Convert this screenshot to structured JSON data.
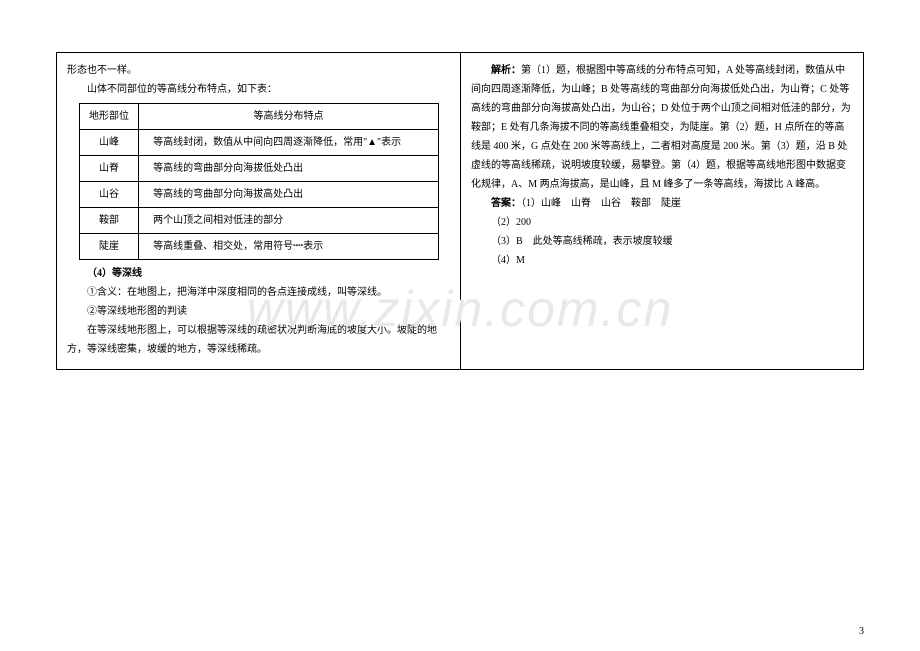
{
  "left": {
    "p1": "形态也不一样。",
    "p2": "山体不同部位的等高线分布特点，如下表：",
    "table": {
      "head": [
        "地形部位",
        "等高线分布特点"
      ],
      "rows": [
        [
          "山峰",
          "等高线封闭，数值从中间向四周逐渐降低，常用\"▲\"表示"
        ],
        [
          "山脊",
          "等高线的弯曲部分向海拔低处凸出"
        ],
        [
          "山谷",
          "等高线的弯曲部分向海拔高处凸出"
        ],
        [
          "鞍部",
          "两个山顶之间相对低洼的部分"
        ],
        [
          "陡崖",
          "等高线重叠、相交处，常用符号┉表示"
        ]
      ]
    },
    "h1": "（4）等深线",
    "p3": "①含义：在地图上，把海洋中深度相同的各点连接成线，叫等深线。",
    "p4": "②等深线地形图的判读",
    "p5": "在等深线地形图上，可以根据等深线的疏密状况判断海底的坡度大小。坡陡的地方，等深线密集，坡缓的地方，等深线稀疏。"
  },
  "right": {
    "p1": "解析：第（1）题，根据图中等高线的分布特点可知，A 处等高线封闭，数值从中间向四周逐渐降低，为山峰；B 处等高线的弯曲部分向海拔低处凸出，为山脊；C 处等高线的弯曲部分向海拔高处凸出，为山谷；D 处位于两个山顶之间相对低洼的部分，为鞍部；E 处有几条海拔不同的等高线重叠相交，为陡崖。第（2）题，H 点所在的等高线是 400 米，G 点处在 200 米等高线上，二者相对高度是 200 米。第（3）题，沿 B 处虚线的等高线稀疏，说明坡度较缓，易攀登。第（4）题，根据等高线地形图中数据变化规律，A、M 两点海拔高，是山峰，且 M 峰多了一条等高线，海拔比 A 峰高。",
    "a_label": "答案：",
    "a1": "（1）山峰　山脊　山谷　鞍部　陡崖",
    "a2": "（2）200",
    "a3": "（3）B　此处等高线稀疏，表示坡度较缓",
    "a4": "（4）M"
  },
  "watermark": "www.zixin.com.cn",
  "pagenum": "3"
}
